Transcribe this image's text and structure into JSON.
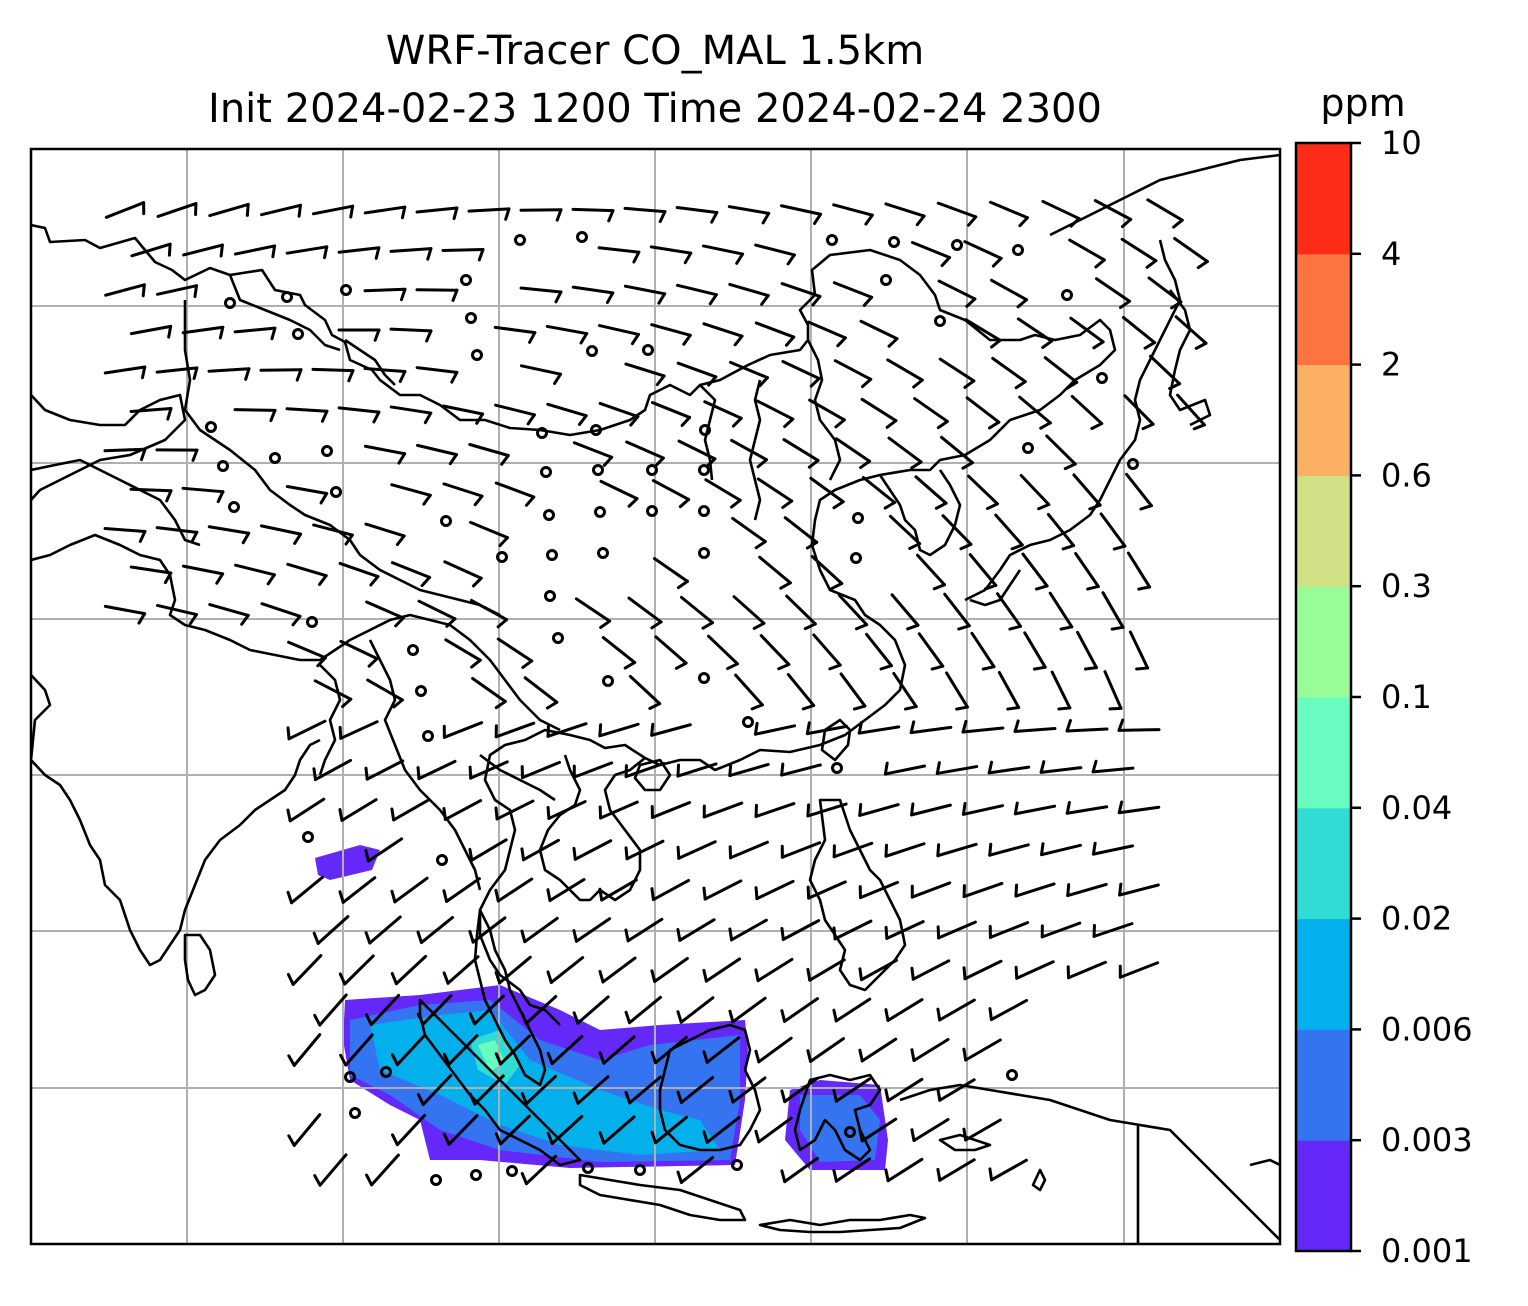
{
  "title": {
    "line1": "WRF-Tracer CO_MAL 1.5km",
    "line2": "Init 2024-02-23 1200 Time 2024-02-24 2300"
  },
  "colorbar": {
    "unit": "ppm",
    "levels": [
      "0.001",
      "0.003",
      "0.006",
      "0.02",
      "0.04",
      "0.1",
      "0.3",
      "0.6",
      "2",
      "4",
      "10"
    ],
    "colors": [
      "#6428f8",
      "#3474f0",
      "#04b0ec",
      "#30dcd4",
      "#68fcc0",
      "#98fc98",
      "#d0e084",
      "#fcb064",
      "#fc7440",
      "#fc2c18"
    ]
  },
  "map": {
    "gridline_color": "#b0b0b0",
    "coastline_color": "#000000",
    "symbols": [
      "wind-barb",
      "calm-wind-circle"
    ]
  }
}
